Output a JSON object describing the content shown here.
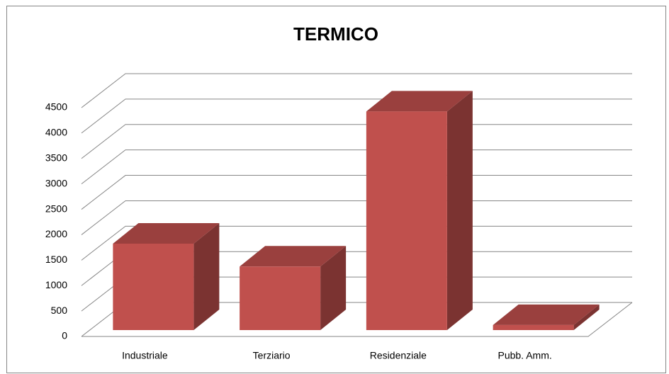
{
  "chart_data": {
    "type": "bar3d",
    "title": "TERMICO",
    "categories": [
      "Industriale",
      "Terziario",
      "Residenziale",
      "Pubb. Amm."
    ],
    "values": [
      1700,
      1250,
      4300,
      100
    ],
    "color": "#c0504d",
    "ylim": [
      0,
      4500
    ],
    "yticks": [
      0,
      500,
      1000,
      1500,
      2000,
      2500,
      3000,
      3500,
      4000,
      4500
    ],
    "grid": true
  }
}
